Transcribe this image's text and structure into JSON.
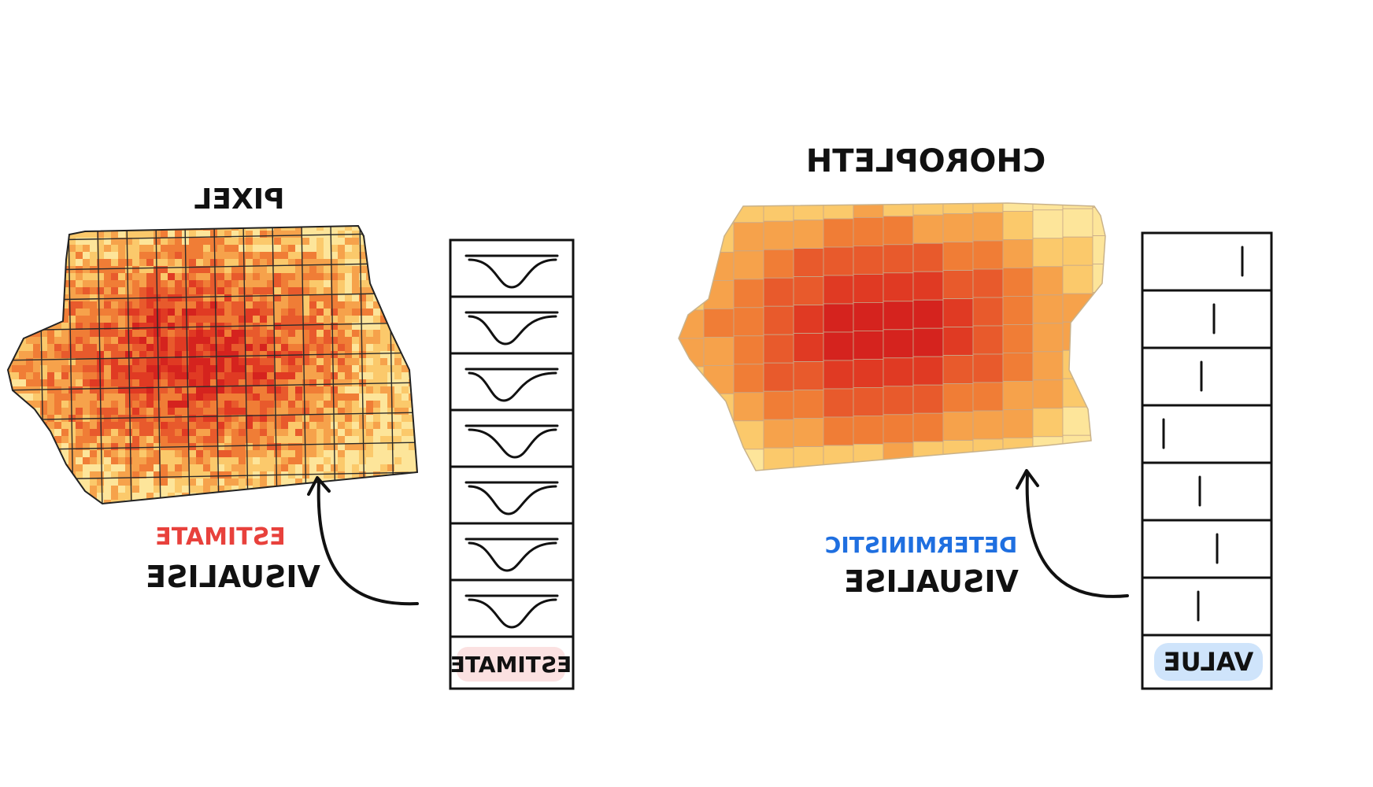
{
  "pixel_panel": {
    "title": "PIXEL",
    "caption_line1": "VISUALISE",
    "caption_line2": "ESTIMATE",
    "column_label": "ESTIMATE",
    "distribution_rows": 7
  },
  "choropleth_panel": {
    "title": "CHOROPLETH",
    "caption_line1": "VISUALISE",
    "caption_line2": "DETERMINISTIC",
    "column_label": "VALUE",
    "value_rows": 7
  },
  "colors": {
    "estimate_accent": "#e8413c",
    "estimate_badge_fill": "#fbe1e1",
    "deterministic_accent": "#1f6fe0",
    "value_badge_fill": "#cfe4fb",
    "ink": "#111111",
    "map_palette": [
      "#fde59a",
      "#fbc96b",
      "#f6a24b",
      "#f07d36",
      "#e85a2c",
      "#e03a23",
      "#d5231e"
    ]
  }
}
